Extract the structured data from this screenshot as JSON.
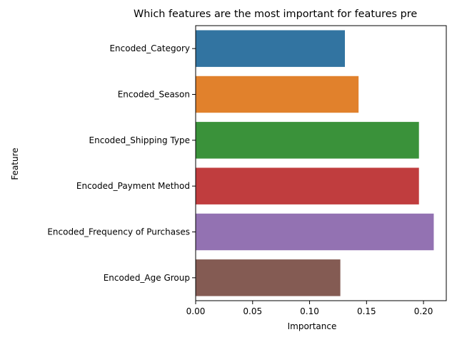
{
  "chart_data": {
    "type": "bar",
    "orientation": "horizontal",
    "title": "Which features are the most important for features pre",
    "xlabel": "Importance",
    "ylabel": "Feature",
    "categories": [
      "Encoded_Category",
      "Encoded_Season",
      "Encoded_Shipping Type",
      "Encoded_Payment Method",
      "Encoded_Frequency of Purchases",
      "Encoded_Age Group"
    ],
    "values": [
      0.131,
      0.143,
      0.196,
      0.196,
      0.209,
      0.127
    ],
    "colors": [
      "#3274a1",
      "#e1812c",
      "#3a923a",
      "#c03d3e",
      "#9372b2",
      "#845b53"
    ],
    "xlim": [
      0,
      0.22
    ],
    "xticks": [
      "0.00",
      "0.05",
      "0.10",
      "0.15",
      "0.20"
    ],
    "grid": false,
    "legend": "none"
  }
}
